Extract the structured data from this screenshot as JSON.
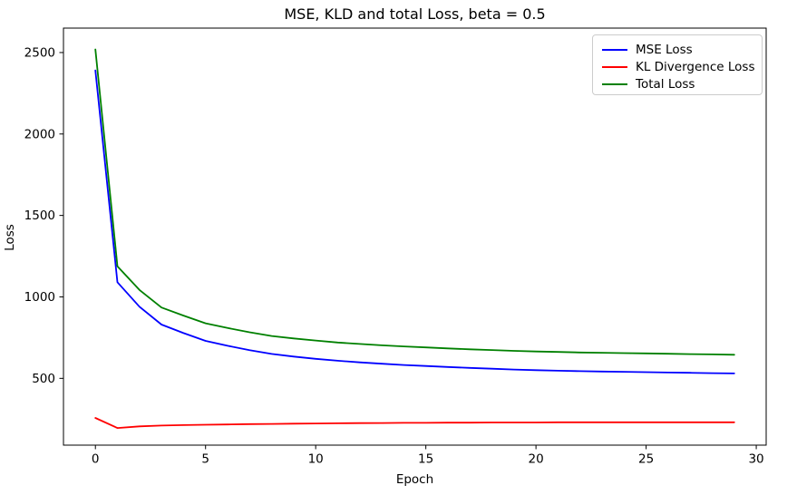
{
  "chart_data": {
    "type": "line",
    "title": "MSE, KLD and total Loss, beta = 0.5",
    "xlabel": "Epoch",
    "ylabel": "Loss",
    "grid": false,
    "legend_position": "upper right",
    "legend_border_color": "#cccccc",
    "axis_color": "#000000",
    "background_color": "#ffffff",
    "xlim": [
      -1.45,
      30.45
    ],
    "ylim": [
      90,
      2650
    ],
    "xticks": [
      0,
      5,
      10,
      15,
      20,
      25,
      30
    ],
    "yticks": [
      500,
      1000,
      1500,
      2000,
      2500
    ],
    "x": [
      0,
      1,
      2,
      3,
      4,
      5,
      6,
      7,
      8,
      9,
      10,
      11,
      12,
      13,
      14,
      15,
      16,
      17,
      18,
      19,
      20,
      21,
      22,
      23,
      24,
      25,
      26,
      27,
      28,
      29
    ],
    "series": [
      {
        "name": "MSE Loss",
        "color": "#0000ff",
        "values": [
          2390,
          1090,
          940,
          830,
          778,
          730,
          700,
          673,
          650,
          634,
          620,
          608,
          598,
          590,
          582,
          576,
          570,
          564,
          559,
          554,
          550,
          547,
          544,
          542,
          540,
          538,
          536,
          534,
          532,
          530
        ]
      },
      {
        "name": "KL Divergence Loss",
        "color": "#ff0000",
        "values": [
          257,
          195,
          205,
          210,
          213,
          215,
          217,
          219,
          220,
          222,
          223,
          224,
          225,
          226,
          227,
          227,
          228,
          228,
          229,
          229,
          229,
          230,
          230,
          230,
          230,
          230,
          230,
          230,
          230,
          230
        ]
      },
      {
        "name": "Total Loss",
        "color": "#008000",
        "values": [
          2519,
          1188,
          1043,
          935,
          885,
          838,
          809,
          783,
          760,
          745,
          732,
          720,
          711,
          703,
          696,
          690,
          684,
          678,
          674,
          669,
          665,
          662,
          659,
          657,
          655,
          653,
          651,
          649,
          647,
          645
        ]
      }
    ]
  }
}
